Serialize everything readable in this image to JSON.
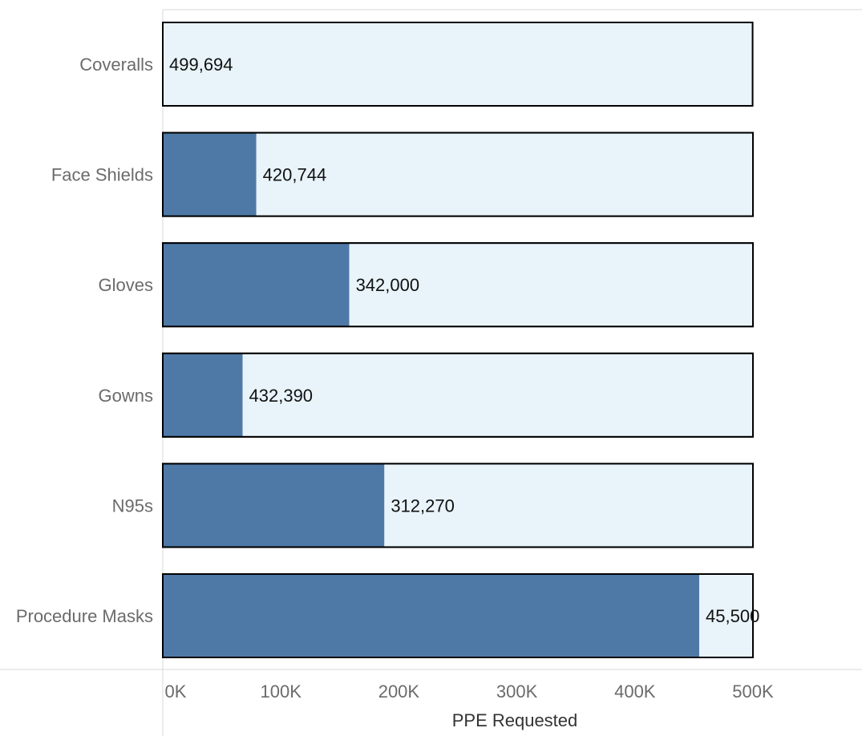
{
  "chart_data": {
    "type": "bar",
    "orientation": "horizontal",
    "title": "",
    "xlabel": "PPE Requested",
    "ylabel": "",
    "xlim": [
      0,
      500000
    ],
    "x_ticks": [
      0,
      100000,
      200000,
      300000,
      400000,
      500000
    ],
    "x_tick_labels": [
      "0K",
      "100K",
      "200K",
      "300K",
      "400K",
      "500K"
    ],
    "grid": false,
    "categories": [
      "Coveralls",
      "Face Shields",
      "Gloves",
      "Gowns",
      "N95s",
      "Procedure Masks"
    ],
    "series": [
      {
        "values": [
          0,
          79256,
          158000,
          67610,
          187730,
          454500
        ],
        "color": "#4e79a7"
      },
      {
        "values": [
          499694,
          420744,
          342000,
          432390,
          312270,
          45500
        ],
        "color": "#e8f4fa"
      }
    ],
    "data_labels": [
      "499,694",
      "420,744",
      "342,000",
      "432,390",
      "312,270",
      "45,500"
    ]
  }
}
